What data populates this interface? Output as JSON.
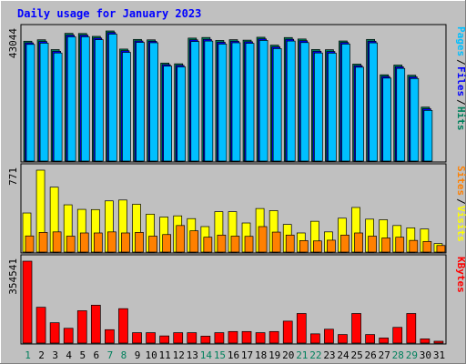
{
  "chart_data": {
    "type": "bar",
    "title": "Daily usage for January 2023",
    "days": [
      "1",
      "2",
      "3",
      "4",
      "5",
      "6",
      "7",
      "8",
      "9",
      "10",
      "11",
      "12",
      "13",
      "14",
      "15",
      "16",
      "17",
      "18",
      "19",
      "20",
      "21",
      "22",
      "23",
      "24",
      "25",
      "26",
      "27",
      "28",
      "29",
      "30",
      "31"
    ],
    "weekend_days": [
      "1",
      "7",
      "8",
      "14",
      "15",
      "21",
      "22",
      "28",
      "29"
    ],
    "panels": [
      {
        "id": "hits-files-pages",
        "ymax_label": "43044",
        "ymax": 43044,
        "right_labels": [
          "Pages",
          "Files",
          "Hits"
        ],
        "series": [
          {
            "name": "Hits",
            "color": "#00805c",
            "values": [
              39650,
              40120,
              36880,
              42250,
              42200,
              41250,
              43044,
              37050,
              40240,
              40100,
              32420,
              32180,
              40680,
              40880,
              39900,
              40150,
              40000,
              40960,
              38350,
              40860,
              40380,
              36900,
              36840,
              39730,
              32080,
              40240,
              28540,
              31760,
              28400,
              17850,
              0
            ]
          },
          {
            "name": "Files",
            "color": "#0000ff",
            "values": [
              39120,
              39540,
              36300,
              41650,
              41650,
              40700,
              42530,
              36500,
              39730,
              39630,
              31900,
              31660,
              40100,
              40250,
              39300,
              39640,
              39470,
              40400,
              37770,
              40280,
              39800,
              36330,
              36250,
              39220,
              31560,
              39650,
              28000,
              31200,
              27850,
              17300,
              0
            ]
          },
          {
            "name": "Pages",
            "color": "#00bfff",
            "values": [
              38600,
              39000,
              35750,
              41100,
              41100,
              40150,
              42000,
              35950,
              39250,
              39140,
              31400,
              31150,
              39550,
              39700,
              38700,
              39130,
              38950,
              39900,
              37200,
              39700,
              39200,
              35750,
              35700,
              38700,
              31050,
              39100,
              27450,
              30650,
              27300,
              16750,
              0
            ]
          }
        ]
      },
      {
        "id": "visits-sites",
        "ymax_label": "771",
        "ymax": 771,
        "right_labels": [
          "Sites",
          "Visits"
        ],
        "series": [
          {
            "name": "Visits",
            "color": "#ffff00",
            "values": [
              368,
              771,
              611,
              445,
              402,
              400,
              482,
              490,
              450,
              357,
              330,
              341,
              315,
              240,
              380,
              380,
              274,
              410,
              390,
              260,
              180,
              290,
              190,
              319,
              420,
              310,
              304,
              250,
              228,
              217,
              80
            ]
          },
          {
            "name": "Sites",
            "color": "#ff8000",
            "values": [
              152,
              185,
              190,
              150,
              180,
              180,
              190,
              180,
              185,
              150,
              165,
              250,
              200,
              140,
              160,
              150,
              148,
              240,
              188,
              160,
              108,
              105,
              112,
              160,
              180,
              150,
              133,
              140,
              110,
              100,
              62
            ]
          }
        ]
      },
      {
        "id": "kbytes",
        "ymax_label": "354541",
        "ymax": 354541,
        "right_labels": [
          "KBytes"
        ],
        "series": [
          {
            "name": "KBytes",
            "color": "#ff0000",
            "values": [
              354541,
              155000,
              88000,
              64000,
              140000,
              164000,
              58000,
              149000,
              45000,
              45000,
              31000,
              45000,
              45000,
              30000,
              45000,
              50000,
              50000,
              45000,
              50000,
              95000,
              128000,
              40000,
              60000,
              37000,
              128000,
              37000,
              22000,
              68000,
              128000,
              18000,
              8000
            ]
          }
        ]
      }
    ]
  }
}
